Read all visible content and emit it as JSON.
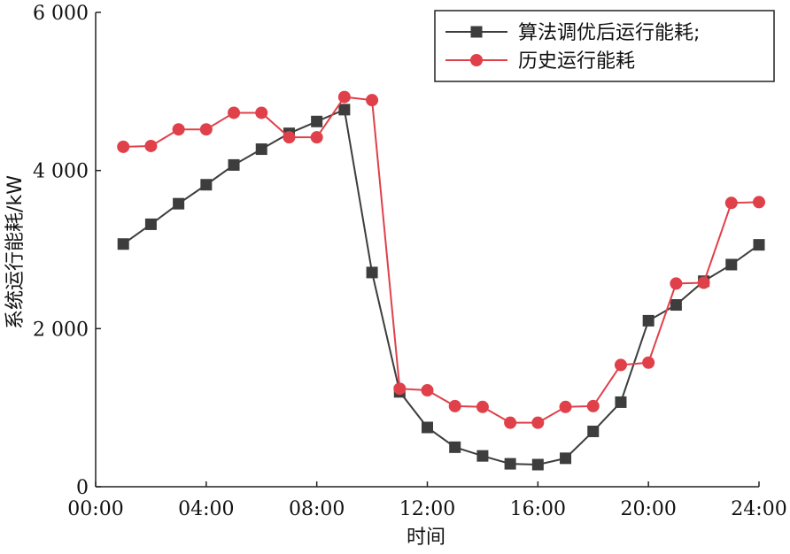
{
  "chart_data": {
    "type": "line",
    "title": "",
    "xlabel": "时间",
    "ylabel": "系统运行能耗/kW",
    "xlim": [
      0,
      24
    ],
    "ylim": [
      0,
      6000
    ],
    "x_ticks": [
      {
        "value": 0,
        "label": "00:00"
      },
      {
        "value": 4,
        "label": "04:00"
      },
      {
        "value": 8,
        "label": "08:00"
      },
      {
        "value": 12,
        "label": "12:00"
      },
      {
        "value": 16,
        "label": "16:00"
      },
      {
        "value": 20,
        "label": "20:00"
      },
      {
        "value": 24,
        "label": "24:00"
      }
    ],
    "y_ticks": [
      {
        "value": 0,
        "label": "0"
      },
      {
        "value": 2000,
        "label": "2 000"
      },
      {
        "value": 4000,
        "label": "4 000"
      },
      {
        "value": 6000,
        "label": "6 000"
      }
    ],
    "grid": false,
    "legend_position": "top-right",
    "x": [
      1,
      2,
      3,
      4,
      5,
      6,
      7,
      8,
      9,
      10,
      11,
      12,
      13,
      14,
      15,
      16,
      17,
      18,
      19,
      20,
      21,
      22,
      23,
      24
    ],
    "series": [
      {
        "name": "算法调优后运行能耗;",
        "marker": "square",
        "color": "#3d3d3d",
        "values": [
          3070,
          3320,
          3580,
          3820,
          4070,
          4270,
          4470,
          4620,
          4770,
          2710,
          1200,
          750,
          500,
          390,
          290,
          280,
          360,
          700,
          1070,
          2100,
          2300,
          2600,
          2810,
          3060
        ]
      },
      {
        "name": "历史运行能耗",
        "marker": "circle",
        "color": "#e0404a",
        "values": [
          4300,
          4310,
          4520,
          4520,
          4730,
          4730,
          4420,
          4420,
          4930,
          4890,
          1240,
          1220,
          1020,
          1010,
          810,
          810,
          1010,
          1020,
          1540,
          1570,
          2570,
          2580,
          3590,
          3600
        ]
      }
    ]
  }
}
